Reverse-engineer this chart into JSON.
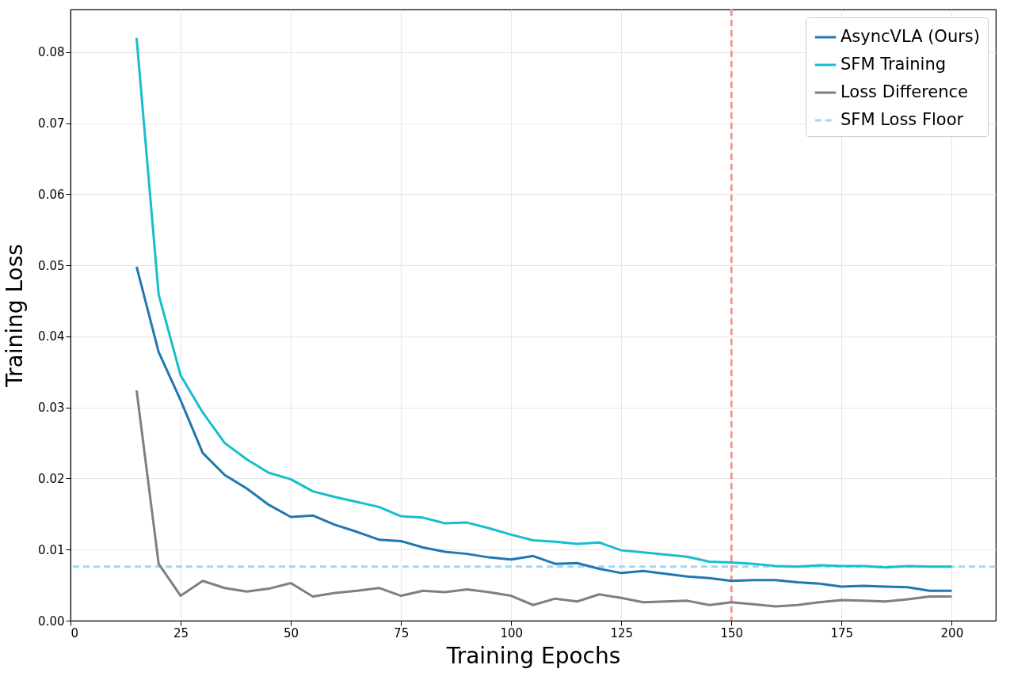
{
  "chart_data": {
    "type": "line",
    "xlabel": "Training Epochs",
    "ylabel": "Training Loss",
    "xlim": [
      0,
      210
    ],
    "ylim": [
      0,
      0.086
    ],
    "xticks": [
      0,
      25,
      50,
      75,
      100,
      125,
      150,
      175,
      200
    ],
    "yticks": [
      {
        "value": 0,
        "label": "0.00"
      },
      {
        "value": 0.01,
        "label": "0.01"
      },
      {
        "value": 0.02,
        "label": "0.02"
      },
      {
        "value": 0.03,
        "label": "0.03"
      },
      {
        "value": 0.04,
        "label": "0.04"
      },
      {
        "value": 0.05,
        "label": "0.05"
      },
      {
        "value": 0.06,
        "label": "0.06"
      },
      {
        "value": 0.07,
        "label": "0.07"
      },
      {
        "value": 0.08,
        "label": "0.08"
      }
    ],
    "grid": true,
    "legend": "top right",
    "line_style": "solid",
    "marker": "none",
    "x": [
      15,
      20,
      25,
      30,
      35,
      40,
      45,
      50,
      55,
      60,
      65,
      70,
      75,
      80,
      85,
      90,
      95,
      100,
      105,
      110,
      115,
      120,
      125,
      130,
      135,
      140,
      145,
      150,
      155,
      160,
      165,
      170,
      175,
      180,
      185,
      190,
      195,
      200
    ],
    "series": [
      {
        "name": "AsyncVLA (Ours)",
        "color": "#1f77b4",
        "values": [
          0.0498,
          0.0378,
          0.031,
          0.0236,
          0.0205,
          0.0186,
          0.0163,
          0.0146,
          0.0148,
          0.0135,
          0.0125,
          0.0114,
          0.0112,
          0.0103,
          0.0097,
          0.0094,
          0.0089,
          0.0086,
          0.0091,
          0.008,
          0.0081,
          0.0073,
          0.0067,
          0.007,
          0.0066,
          0.0062,
          0.006,
          0.0056,
          0.0057,
          0.0057,
          0.0054,
          0.0052,
          0.0048,
          0.0049,
          0.0048,
          0.0047,
          0.0042,
          0.0042
        ]
      },
      {
        "name": "SFM Training",
        "color": "#17becf",
        "values": [
          0.082,
          0.0459,
          0.0345,
          0.0293,
          0.025,
          0.0227,
          0.0208,
          0.0199,
          0.0182,
          0.0174,
          0.0167,
          0.016,
          0.0147,
          0.0145,
          0.0137,
          0.0138,
          0.013,
          0.0121,
          0.0113,
          0.0111,
          0.0108,
          0.011,
          0.0099,
          0.0096,
          0.0093,
          0.009,
          0.0083,
          0.0082,
          0.008,
          0.0077,
          0.0076,
          0.0078,
          0.0077,
          0.0077,
          0.0075,
          0.0077,
          0.0076,
          0.0076
        ]
      },
      {
        "name": "Loss Difference",
        "color": "#7f7f7f",
        "values": [
          0.0324,
          0.008,
          0.0035,
          0.0056,
          0.0046,
          0.0041,
          0.0045,
          0.0053,
          0.0034,
          0.0039,
          0.0042,
          0.0046,
          0.0035,
          0.0042,
          0.004,
          0.0044,
          0.004,
          0.0035,
          0.0022,
          0.0031,
          0.0027,
          0.0037,
          0.0032,
          0.0026,
          0.0027,
          0.0028,
          0.0022,
          0.0026,
          0.0023,
          0.002,
          0.0022,
          0.0026,
          0.0029,
          0.0028,
          0.0027,
          0.003,
          0.0034,
          0.0034
        ]
      }
    ],
    "ref_lines": [
      {
        "axis": "y",
        "value": 0.0076,
        "label": "SFM Loss Floor",
        "color": "#a3d5f5",
        "line_style": "dashed"
      },
      {
        "axis": "x",
        "value": 150,
        "color": "#ef9a9a",
        "line_style": "dashed"
      }
    ]
  }
}
